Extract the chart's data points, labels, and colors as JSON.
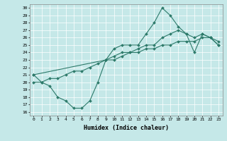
{
  "xlabel": "Humidex (Indice chaleur)",
  "bg_color": "#c5e8e8",
  "line_color": "#2d7a6a",
  "xlim": [
    -0.5,
    23.5
  ],
  "ylim": [
    15.5,
    30.5
  ],
  "zigzag_x": [
    0,
    1,
    2,
    3,
    4,
    5,
    6,
    7,
    8,
    9,
    10,
    11,
    12,
    13,
    14,
    15,
    16,
    17,
    18,
    19,
    20,
    21,
    22,
    23
  ],
  "zigzag_y": [
    21,
    20,
    19.5,
    18,
    17.5,
    16.5,
    16.5,
    17.5,
    20,
    23,
    24.5,
    25,
    25,
    25,
    26.5,
    28,
    30,
    29,
    27.5,
    26.5,
    24,
    26.5,
    26,
    25
  ],
  "upper_x": [
    0,
    9,
    10,
    11,
    12,
    13,
    14,
    15,
    16,
    17,
    18,
    19,
    20,
    21,
    22,
    23
  ],
  "upper_y": [
    21,
    23,
    23.5,
    24,
    24,
    24.5,
    25,
    25,
    26,
    26.5,
    27,
    26.5,
    26,
    26.5,
    26,
    25.5
  ],
  "lower_x": [
    0,
    1,
    2,
    3,
    4,
    5,
    6,
    7,
    8,
    9,
    10,
    11,
    12,
    13,
    14,
    15,
    16,
    17,
    18,
    19,
    20,
    21,
    22,
    23
  ],
  "lower_y": [
    20,
    20,
    20.5,
    20.5,
    21,
    21.5,
    21.5,
    22,
    22.5,
    23,
    23,
    23.5,
    24,
    24,
    24.5,
    24.5,
    25,
    25,
    25.5,
    25.5,
    25.5,
    26,
    26,
    25
  ]
}
